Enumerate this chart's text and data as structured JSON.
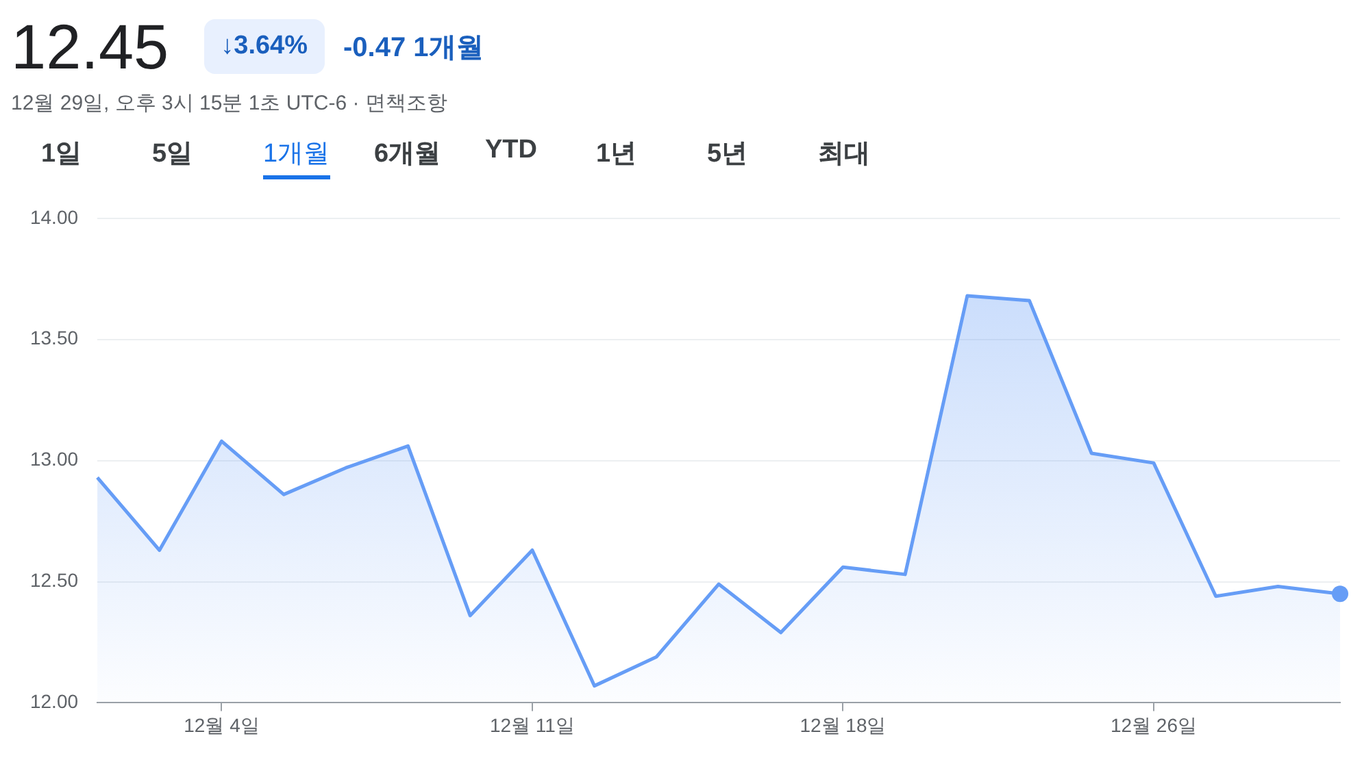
{
  "chart_data": {
    "type": "area",
    "title": "12.45",
    "subtitle": "12월 29일, 오후 3시 15분 1초 UTC-6 · 면책조항",
    "annotations": [
      "↓3.64%",
      "-0.47 1개월",
      "1일",
      "5일",
      "1개월",
      "6개월",
      "YTD",
      "1년",
      "5년",
      "최대"
    ],
    "categories": [
      null,
      null,
      "12월 4일",
      null,
      null,
      null,
      null,
      "12월 11일",
      null,
      null,
      null,
      null,
      "12월 18일",
      null,
      null,
      null,
      null,
      "12월 26일",
      null,
      null,
      null
    ],
    "series": [
      {
        "color": "#669df6",
        "values": [
          12.93,
          12.63,
          13.08,
          12.86,
          12.97,
          13.06,
          12.36,
          12.63,
          12.07,
          12.19,
          12.49,
          12.29,
          12.56,
          12.53,
          13.68,
          13.66,
          13.03,
          12.99,
          12.44,
          12.48,
          12.45
        ]
      }
    ],
    "ylim": [
      12,
      14
    ],
    "yticks": [
      {
        "value": 12,
        "label": "12.00"
      },
      {
        "value": 12.5,
        "label": "12.50"
      },
      {
        "value": 13,
        "label": "13.00"
      },
      {
        "value": 13.5,
        "label": "13.50"
      },
      {
        "value": 14,
        "label": "14.00"
      }
    ],
    "grid": "y",
    "legend": false
  }
}
